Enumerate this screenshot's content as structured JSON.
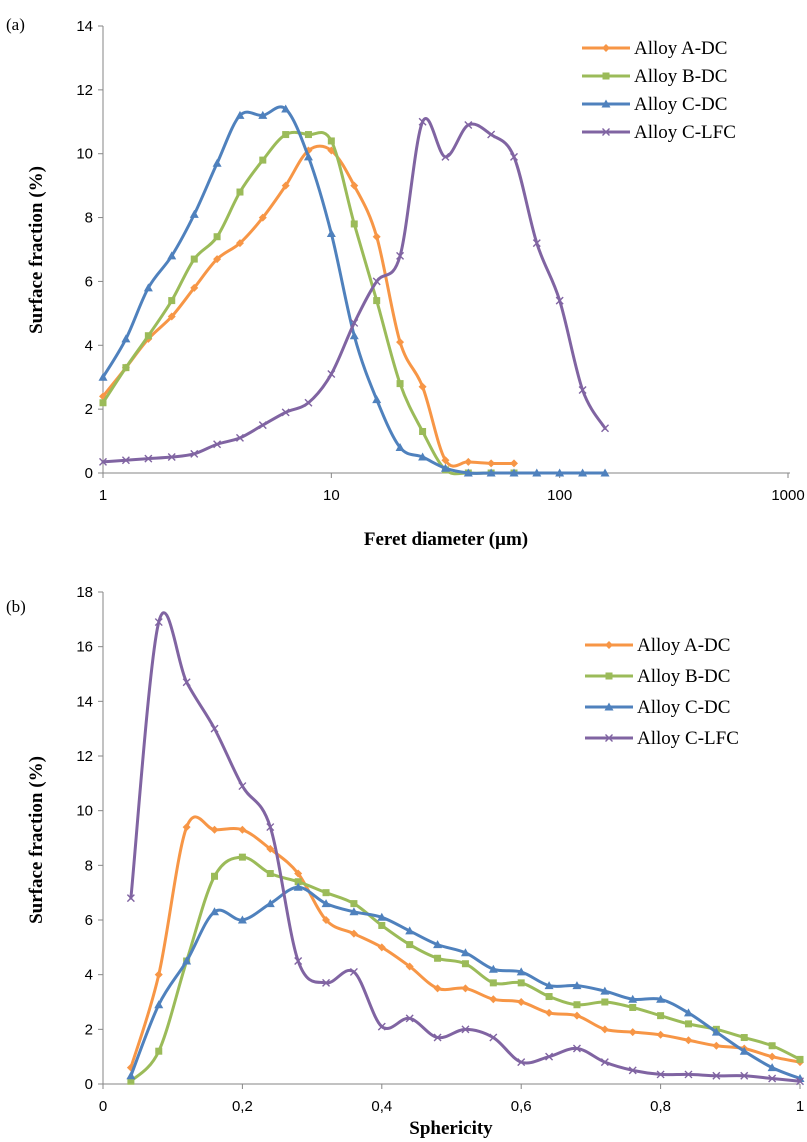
{
  "chart_data": [
    {
      "type": "line",
      "panel_label": "(a)",
      "xlabel": "Feret diameter (µm)",
      "ylabel": "Surface fraction (%)",
      "xscale": "log",
      "xlim": [
        1,
        1000
      ],
      "ylim": [
        0,
        14
      ],
      "x_ticks": [
        1,
        10,
        100,
        1000
      ],
      "x_tick_labels": [
        "1",
        "10",
        "100",
        "1000"
      ],
      "y_ticks": [
        0,
        2,
        4,
        6,
        8,
        10,
        12,
        14
      ],
      "y_tick_labels": [
        "0",
        "2",
        "4",
        "6",
        "8",
        "10",
        "12",
        "14"
      ],
      "grid": false,
      "legend_position": "top-right",
      "series": [
        {
          "name": "Alloy A-DC",
          "color": "#F79646",
          "marker": "diamond",
          "x": [
            1,
            1.26,
            1.58,
            2,
            2.51,
            3.16,
            3.98,
            5.01,
            6.31,
            7.94,
            10,
            12.6,
            15.8,
            20,
            25.1,
            31.6,
            39.8,
            50.1,
            63.1
          ],
          "y": [
            2.4,
            3.3,
            4.2,
            4.9,
            5.8,
            6.7,
            7.2,
            8.0,
            9.0,
            10.1,
            10.1,
            9.0,
            7.4,
            4.1,
            2.7,
            0.4,
            0.35,
            0.3,
            0.3
          ]
        },
        {
          "name": "Alloy B-DC",
          "color": "#9BBB59",
          "marker": "square",
          "x": [
            1,
            1.26,
            1.58,
            2,
            2.51,
            3.16,
            3.98,
            5.01,
            6.31,
            7.94,
            10,
            12.6,
            15.8,
            20,
            25.1,
            31.6,
            39.8,
            50.1,
            63.1
          ],
          "y": [
            2.2,
            3.3,
            4.3,
            5.4,
            6.7,
            7.4,
            8.8,
            9.8,
            10.6,
            10.6,
            10.4,
            7.8,
            5.4,
            2.8,
            1.3,
            0.1,
            0.0,
            0.0,
            0.0
          ]
        },
        {
          "name": "Alloy C-DC",
          "color": "#4F81BD",
          "marker": "triangle",
          "x": [
            1,
            1.26,
            1.58,
            2,
            2.51,
            3.16,
            3.98,
            5.01,
            6.31,
            7.94,
            10,
            12.6,
            15.8,
            20,
            25.1,
            31.6,
            39.8,
            50.1,
            63.1,
            79.4,
            100,
            126,
            158
          ],
          "y": [
            3.0,
            4.2,
            5.8,
            6.8,
            8.1,
            9.7,
            11.2,
            11.2,
            11.4,
            9.9,
            7.5,
            4.3,
            2.3,
            0.8,
            0.5,
            0.15,
            0.0,
            0.0,
            0.0,
            0.0,
            0.0,
            0.0,
            0.0
          ]
        },
        {
          "name": "Alloy C-LFC",
          "color": "#8064A2",
          "marker": "x",
          "x": [
            1,
            1.26,
            1.58,
            2,
            2.51,
            3.16,
            3.98,
            5.01,
            6.31,
            7.94,
            10,
            12.6,
            15.8,
            20,
            25.1,
            31.6,
            39.8,
            50.1,
            63.1,
            79.4,
            100,
            126,
            158
          ],
          "y": [
            0.35,
            0.4,
            0.45,
            0.5,
            0.6,
            0.9,
            1.1,
            1.5,
            1.9,
            2.2,
            3.1,
            4.7,
            6.0,
            6.8,
            11.0,
            9.9,
            10.9,
            10.6,
            9.9,
            7.2,
            5.4,
            2.6,
            1.4
          ]
        }
      ]
    },
    {
      "type": "line",
      "panel_label": "(b)",
      "xlabel": "Sphericity",
      "ylabel": "Surface fraction (%)",
      "xscale": "linear",
      "xlim": [
        0,
        1
      ],
      "ylim": [
        0,
        18
      ],
      "x_ticks": [
        0,
        0.2,
        0.4,
        0.6,
        0.8,
        1
      ],
      "x_tick_labels": [
        "0",
        "0,2",
        "0,4",
        "0,6",
        "0,8",
        "1"
      ],
      "y_ticks": [
        0,
        2,
        4,
        6,
        8,
        10,
        12,
        14,
        16,
        18
      ],
      "y_tick_labels": [
        "0",
        "2",
        "4",
        "6",
        "8",
        "10",
        "12",
        "14",
        "16",
        "18"
      ],
      "grid": false,
      "legend_position": "top-right",
      "series": [
        {
          "name": "Alloy A-DC",
          "color": "#F79646",
          "marker": "diamond",
          "x": [
            0.04,
            0.08,
            0.12,
            0.16,
            0.2,
            0.24,
            0.28,
            0.32,
            0.36,
            0.4,
            0.44,
            0.48,
            0.52,
            0.56,
            0.6,
            0.64,
            0.68,
            0.72,
            0.76,
            0.8,
            0.84,
            0.88,
            0.92,
            0.96,
            1.0
          ],
          "y": [
            0.6,
            4.0,
            9.4,
            9.3,
            9.3,
            8.6,
            7.7,
            6.0,
            5.5,
            5.0,
            4.3,
            3.5,
            3.5,
            3.1,
            3.0,
            2.6,
            2.5,
            2.0,
            1.9,
            1.8,
            1.6,
            1.4,
            1.3,
            1.0,
            0.8
          ]
        },
        {
          "name": "Alloy B-DC",
          "color": "#9BBB59",
          "marker": "square",
          "x": [
            0.04,
            0.08,
            0.12,
            0.16,
            0.2,
            0.24,
            0.28,
            0.32,
            0.36,
            0.4,
            0.44,
            0.48,
            0.52,
            0.56,
            0.6,
            0.64,
            0.68,
            0.72,
            0.76,
            0.8,
            0.84,
            0.88,
            0.92,
            0.96,
            1.0
          ],
          "y": [
            0.1,
            1.2,
            4.5,
            7.6,
            8.3,
            7.7,
            7.4,
            7.0,
            6.6,
            5.8,
            5.1,
            4.6,
            4.4,
            3.7,
            3.7,
            3.2,
            2.9,
            3.0,
            2.8,
            2.5,
            2.2,
            2.0,
            1.7,
            1.4,
            0.9
          ]
        },
        {
          "name": "Alloy C-DC",
          "color": "#4F81BD",
          "marker": "triangle",
          "x": [
            0.04,
            0.08,
            0.12,
            0.16,
            0.2,
            0.24,
            0.28,
            0.32,
            0.36,
            0.4,
            0.44,
            0.48,
            0.52,
            0.56,
            0.6,
            0.64,
            0.68,
            0.72,
            0.76,
            0.8,
            0.84,
            0.88,
            0.92,
            0.96,
            1.0
          ],
          "y": [
            0.3,
            2.9,
            4.5,
            6.3,
            6.0,
            6.6,
            7.2,
            6.6,
            6.3,
            6.1,
            5.6,
            5.1,
            4.8,
            4.2,
            4.1,
            3.6,
            3.6,
            3.4,
            3.1,
            3.1,
            2.6,
            1.9,
            1.2,
            0.6,
            0.2
          ]
        },
        {
          "name": "Alloy C-LFC",
          "color": "#8064A2",
          "marker": "x",
          "x": [
            0.04,
            0.08,
            0.12,
            0.16,
            0.2,
            0.24,
            0.28,
            0.32,
            0.36,
            0.4,
            0.44,
            0.48,
            0.52,
            0.56,
            0.6,
            0.64,
            0.68,
            0.72,
            0.76,
            0.8,
            0.84,
            0.88,
            0.92,
            0.96,
            1.0
          ],
          "y": [
            6.8,
            16.9,
            14.7,
            13.0,
            10.9,
            9.4,
            4.5,
            3.7,
            4.1,
            2.1,
            2.4,
            1.7,
            2.0,
            1.7,
            0.8,
            1.0,
            1.3,
            0.8,
            0.5,
            0.35,
            0.35,
            0.3,
            0.3,
            0.2,
            0.1
          ]
        }
      ]
    }
  ]
}
